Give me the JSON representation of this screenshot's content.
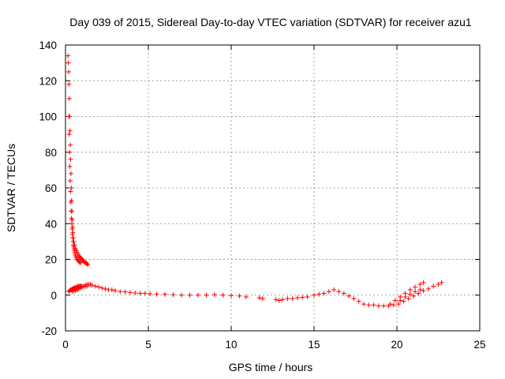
{
  "chart_data": {
    "type": "scatter",
    "title": "Day 039 of 2015, Sidereal Day-to-day VTEC variation (SDTVAR) for receiver azu1",
    "xlabel": "GPS time / hours",
    "ylabel": "SDTVAR / TECUs",
    "xlim": [
      0,
      25
    ],
    "ylim": [
      -20,
      140
    ],
    "xticks": [
      0,
      5,
      10,
      15,
      20,
      25
    ],
    "yticks": [
      -20,
      0,
      20,
      40,
      60,
      80,
      100,
      120,
      140
    ],
    "grid": true,
    "marker": "+",
    "color": "#ff0000",
    "series": [
      {
        "name": "SDTVAR",
        "x": [
          0.15,
          0.17,
          0.19,
          0.21,
          0.23,
          0.25,
          0.27,
          0.29,
          0.31,
          0.33,
          0.35,
          0.37,
          0.39,
          0.41,
          0.43,
          0.45,
          0.47,
          0.5,
          0.55,
          0.6,
          0.65,
          0.7,
          0.75,
          0.8,
          0.85,
          0.9,
          0.95,
          1.0,
          1.05,
          1.1,
          1.15,
          1.2,
          1.25,
          1.3,
          1.35,
          0.2,
          0.22,
          0.24,
          0.26,
          0.28,
          0.3,
          0.32,
          0.34,
          0.36,
          0.38,
          0.4,
          0.42,
          0.44,
          0.46,
          0.48,
          0.5,
          0.52,
          0.54,
          0.56,
          0.58,
          0.6,
          0.65,
          0.7,
          0.75,
          0.8,
          0.85,
          0.9,
          0.2,
          0.25,
          0.3,
          0.35,
          0.4,
          0.45,
          0.5,
          0.55,
          0.6,
          0.65,
          0.7,
          0.75,
          0.8,
          0.85,
          0.9,
          0.95,
          1.0,
          1.1,
          1.2,
          1.3,
          0.4,
          0.5,
          0.6,
          0.7,
          0.8,
          0.9,
          1.0,
          1.1,
          1.2,
          1.3,
          1.4,
          1.5,
          1.6,
          1.8,
          2.0,
          2.2,
          2.4,
          2.6,
          2.8,
          3.0,
          3.3,
          3.6,
          3.9,
          4.2,
          4.5,
          4.8,
          5.1,
          5.5,
          6.0,
          6.5,
          7.0,
          7.5,
          8.0,
          8.5,
          9.0,
          9.5,
          10.0,
          10.5,
          10.9,
          11.7,
          11.9,
          12.7,
          12.9,
          13.1,
          13.4,
          13.7,
          14.0,
          14.3,
          14.6,
          15.0,
          15.3,
          15.6,
          15.9,
          16.2,
          16.5,
          16.8,
          17.1,
          17.4,
          17.7,
          18.0,
          18.3,
          18.6,
          18.9,
          19.2,
          19.5,
          19.8,
          20.1,
          20.4,
          20.7,
          21.0,
          21.3,
          21.6,
          21.9,
          22.2,
          22.5,
          22.7,
          19.6,
          19.9,
          20.2,
          20.5,
          20.8,
          21.1,
          21.4,
          21.6,
          20.2,
          20.5,
          20.8,
          21.1,
          21.4
        ],
        "y": [
          134,
          130,
          125,
          118,
          110,
          100,
          92,
          84,
          76,
          68,
          60,
          53,
          47,
          42,
          38,
          35,
          32,
          30,
          28,
          26,
          25,
          24,
          23,
          22,
          21.5,
          21,
          20.5,
          20,
          19.5,
          19,
          18.5,
          18,
          18,
          17.5,
          17,
          100,
          90,
          80,
          72,
          64,
          58,
          52,
          47,
          43,
          40,
          37,
          34,
          32,
          30,
          28,
          27,
          26,
          25,
          24,
          23,
          22,
          21,
          20,
          19.5,
          19,
          18.5,
          18,
          2,
          2.5,
          3,
          3,
          3.5,
          3.5,
          4,
          4,
          4,
          4.5,
          4.5,
          5,
          5,
          5,
          5,
          5,
          5,
          5,
          5,
          5,
          2,
          2.2,
          2.5,
          3,
          3.5,
          4,
          4.5,
          5,
          5.5,
          6,
          6,
          6,
          5.5,
          5,
          4.5,
          4,
          3.5,
          3,
          3,
          2.5,
          2,
          1.8,
          1.5,
          1.2,
          1,
          1,
          0.8,
          0.5,
          0.5,
          0.2,
          0,
          0,
          0,
          0,
          0.2,
          0,
          -0.2,
          -0.5,
          -1,
          -1.5,
          -2,
          -2.5,
          -3,
          -2.5,
          -2,
          -2,
          -1.5,
          -1.2,
          -1,
          0,
          0.5,
          1,
          2,
          3,
          2,
          1,
          -0.5,
          -2,
          -3.5,
          -5,
          -5.5,
          -5.5,
          -6,
          -6,
          -6,
          -5.5,
          -5,
          -3.5,
          -2,
          -0.5,
          1,
          2.5,
          3.5,
          5,
          6,
          7,
          -5,
          -3,
          -1,
          1,
          3,
          4.5,
          6,
          7,
          -3,
          -1,
          0.5,
          2,
          3
        ]
      }
    ]
  }
}
